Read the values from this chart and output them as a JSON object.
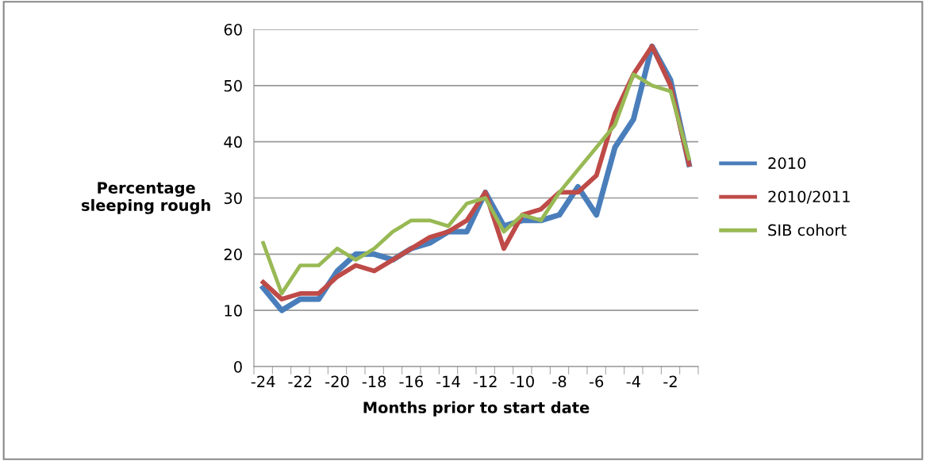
{
  "chart_data": {
    "type": "line",
    "xlabel": "Months prior to start date",
    "ylabel": "Percentage\nsleeping rough",
    "categories": [
      "-24",
      null,
      "-22",
      null,
      "-20",
      null,
      "-18",
      null,
      "-16",
      null,
      "-14",
      null,
      "-12",
      null,
      "-10",
      null,
      "-8",
      null,
      "-6",
      null,
      "-4",
      null,
      "-2",
      null
    ],
    "series": [
      {
        "name": "2010",
        "color": "#4a7ebb",
        "values": [
          14,
          10,
          12,
          12,
          17,
          20,
          20,
          19,
          21,
          22,
          24,
          24,
          31,
          25,
          26,
          26,
          27,
          32,
          27,
          39,
          44,
          57,
          51,
          36
        ]
      },
      {
        "name": "2010/2011",
        "color": "#be4b48",
        "values": [
          15,
          12,
          13,
          13,
          16,
          18,
          17,
          19,
          21,
          23,
          24,
          26,
          31,
          21,
          27,
          28,
          31,
          31,
          34,
          45,
          52,
          57,
          50,
          36
        ]
      },
      {
        "name": "SIB cohort",
        "color": "#98b954",
        "values": [
          22,
          13,
          18,
          18,
          21,
          19,
          21,
          24,
          26,
          26,
          25,
          29,
          30,
          24,
          27,
          26,
          31,
          35,
          39,
          43,
          52,
          50,
          49,
          37
        ]
      }
    ],
    "ylim": [
      0,
      60
    ],
    "yticks": [
      0,
      10,
      20,
      30,
      40,
      50,
      60
    ],
    "grid": "y",
    "legend": "right",
    "marker": "none",
    "line_style": "solid"
  }
}
